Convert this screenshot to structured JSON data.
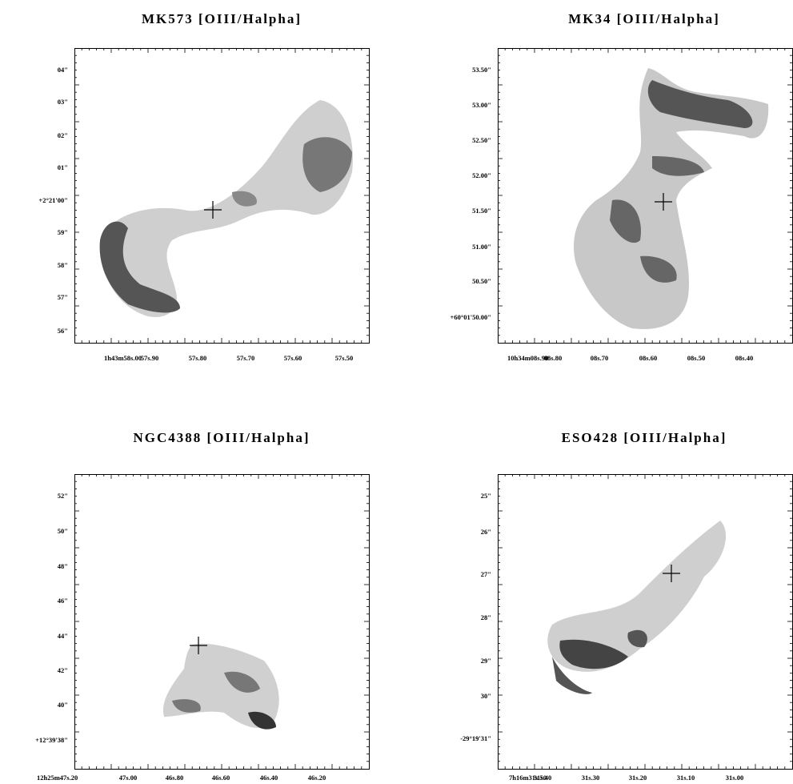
{
  "panels": [
    {
      "title": "MK573 [OIII/Halpha]",
      "y_ticks": [
        "04\"",
        "03\"",
        "02\"",
        "01\"",
        "+2°21'00\"",
        "59\"",
        "58\"",
        "57\"",
        "56\""
      ],
      "x_ticks": [
        "1h43m58s.00",
        "57s.90",
        "57s.80",
        "57s.70",
        "57s.60",
        "57s.50"
      ]
    },
    {
      "title": "MK34 [OIII/Halpha]",
      "y_ticks": [
        "53.50\"",
        "53.00\"",
        "52.50\"",
        "52.00\"",
        "51.50\"",
        "51.00\"",
        "50.50\"",
        "+60°01'50.00\""
      ],
      "x_ticks": [
        "10h34m08s.90",
        "08s.80",
        "08s.70",
        "08s.60",
        "08s.50",
        "08s.40"
      ]
    },
    {
      "title": "NGC4388 [OIII/Halpha]",
      "y_ticks": [
        "52\"",
        "50\"",
        "48\"",
        "46\"",
        "44\"",
        "42\"",
        "40\"",
        "+12°39'38\""
      ],
      "x_ticks": [
        "12h25m47s.20",
        "47s.00",
        "46s.80",
        "46s.60",
        "46s.40",
        "46s.20"
      ]
    },
    {
      "title": "ESO428 [OIII/Halpha]",
      "y_ticks": [
        "25\"",
        "26\"",
        "27\"",
        "28\"",
        "29\"",
        "30\"",
        "-29°19'31\""
      ],
      "x_ticks": [
        "7h16m31s.50",
        "31s.40",
        "31s.30",
        "31s.20",
        "31s.10",
        "31s.00"
      ]
    }
  ]
}
